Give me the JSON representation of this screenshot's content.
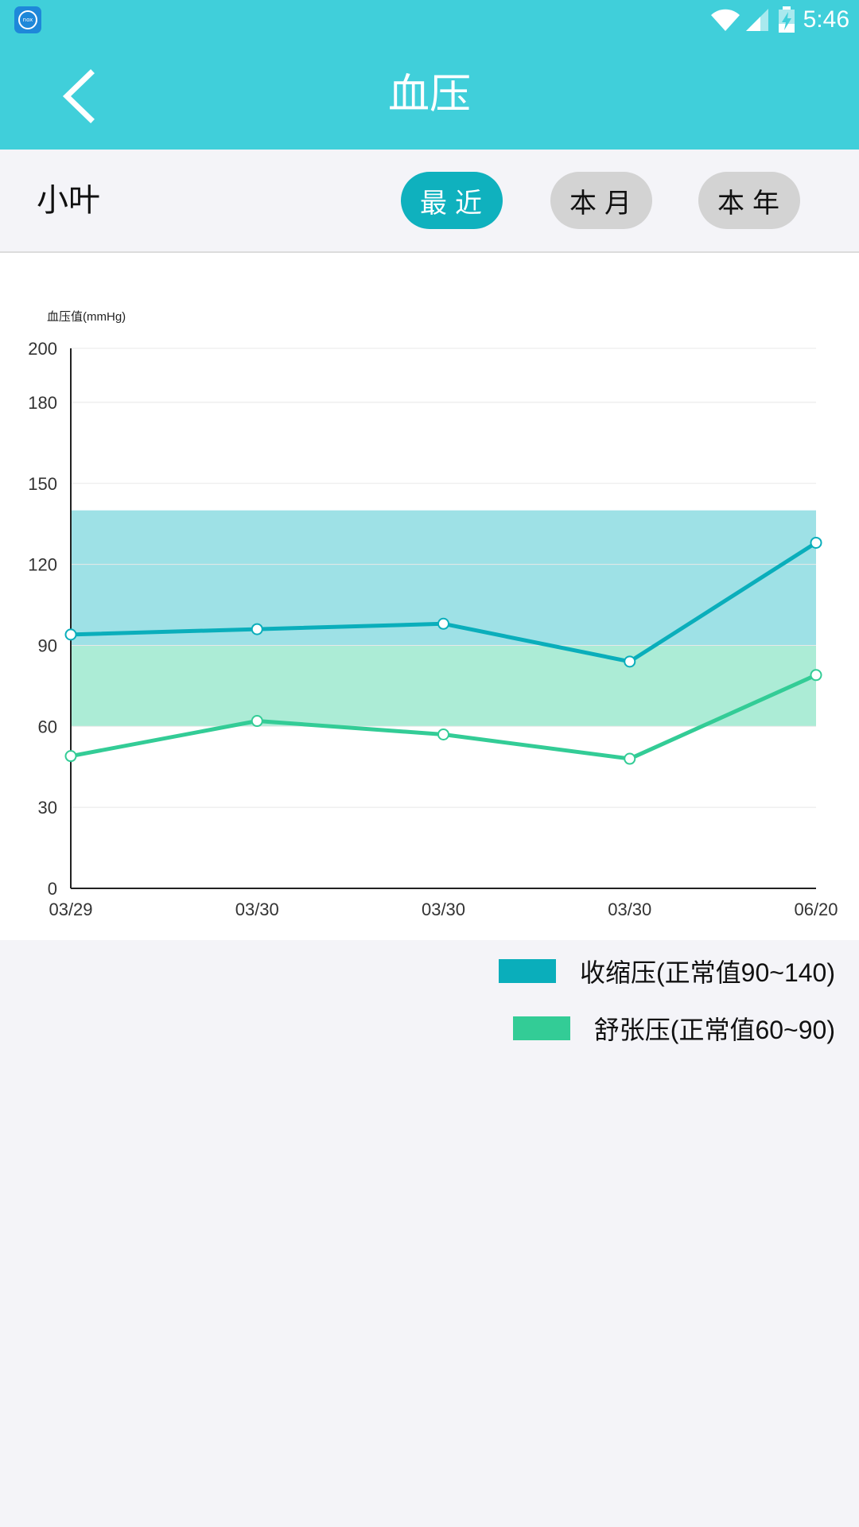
{
  "status_bar": {
    "app_icon_text": "nox",
    "time": "5:46",
    "icons": [
      "wifi-icon",
      "signal-icon",
      "battery-charging-icon"
    ]
  },
  "app_bar": {
    "title": "血压",
    "back_icon": "chevron-left-icon"
  },
  "filter_bar": {
    "user_name": "小叶",
    "tabs": [
      {
        "label": "最近",
        "active": true
      },
      {
        "label": "本月",
        "active": false
      },
      {
        "label": "本年",
        "active": false
      }
    ]
  },
  "colors": {
    "primary": "#40cfda",
    "accent": "#0fb1be",
    "systolic": "#0aaebb",
    "diastolic": "#33cc96",
    "systolic_band": "#9ee1e6",
    "diastolic_band": "#acecd6"
  },
  "chart_data": {
    "type": "line",
    "ylabel": "血压值(mmHg)",
    "ylim": [
      0,
      200
    ],
    "yticks": [
      0,
      30,
      60,
      90,
      120,
      150,
      180,
      200
    ],
    "categories": [
      "03/29",
      "03/30",
      "03/30",
      "03/30",
      "06/20"
    ],
    "series": [
      {
        "name": "收缩压(正常值90~140)",
        "values": [
          94,
          96,
          98,
          84,
          128
        ]
      },
      {
        "name": "舒张压(正常值60~90)",
        "values": [
          49,
          62,
          57,
          48,
          79
        ]
      }
    ],
    "normal_ranges": [
      {
        "series": 0,
        "low": 90,
        "high": 140
      },
      {
        "series": 1,
        "low": 60,
        "high": 90
      }
    ],
    "grid": true,
    "legend_position": "bottom-right"
  }
}
